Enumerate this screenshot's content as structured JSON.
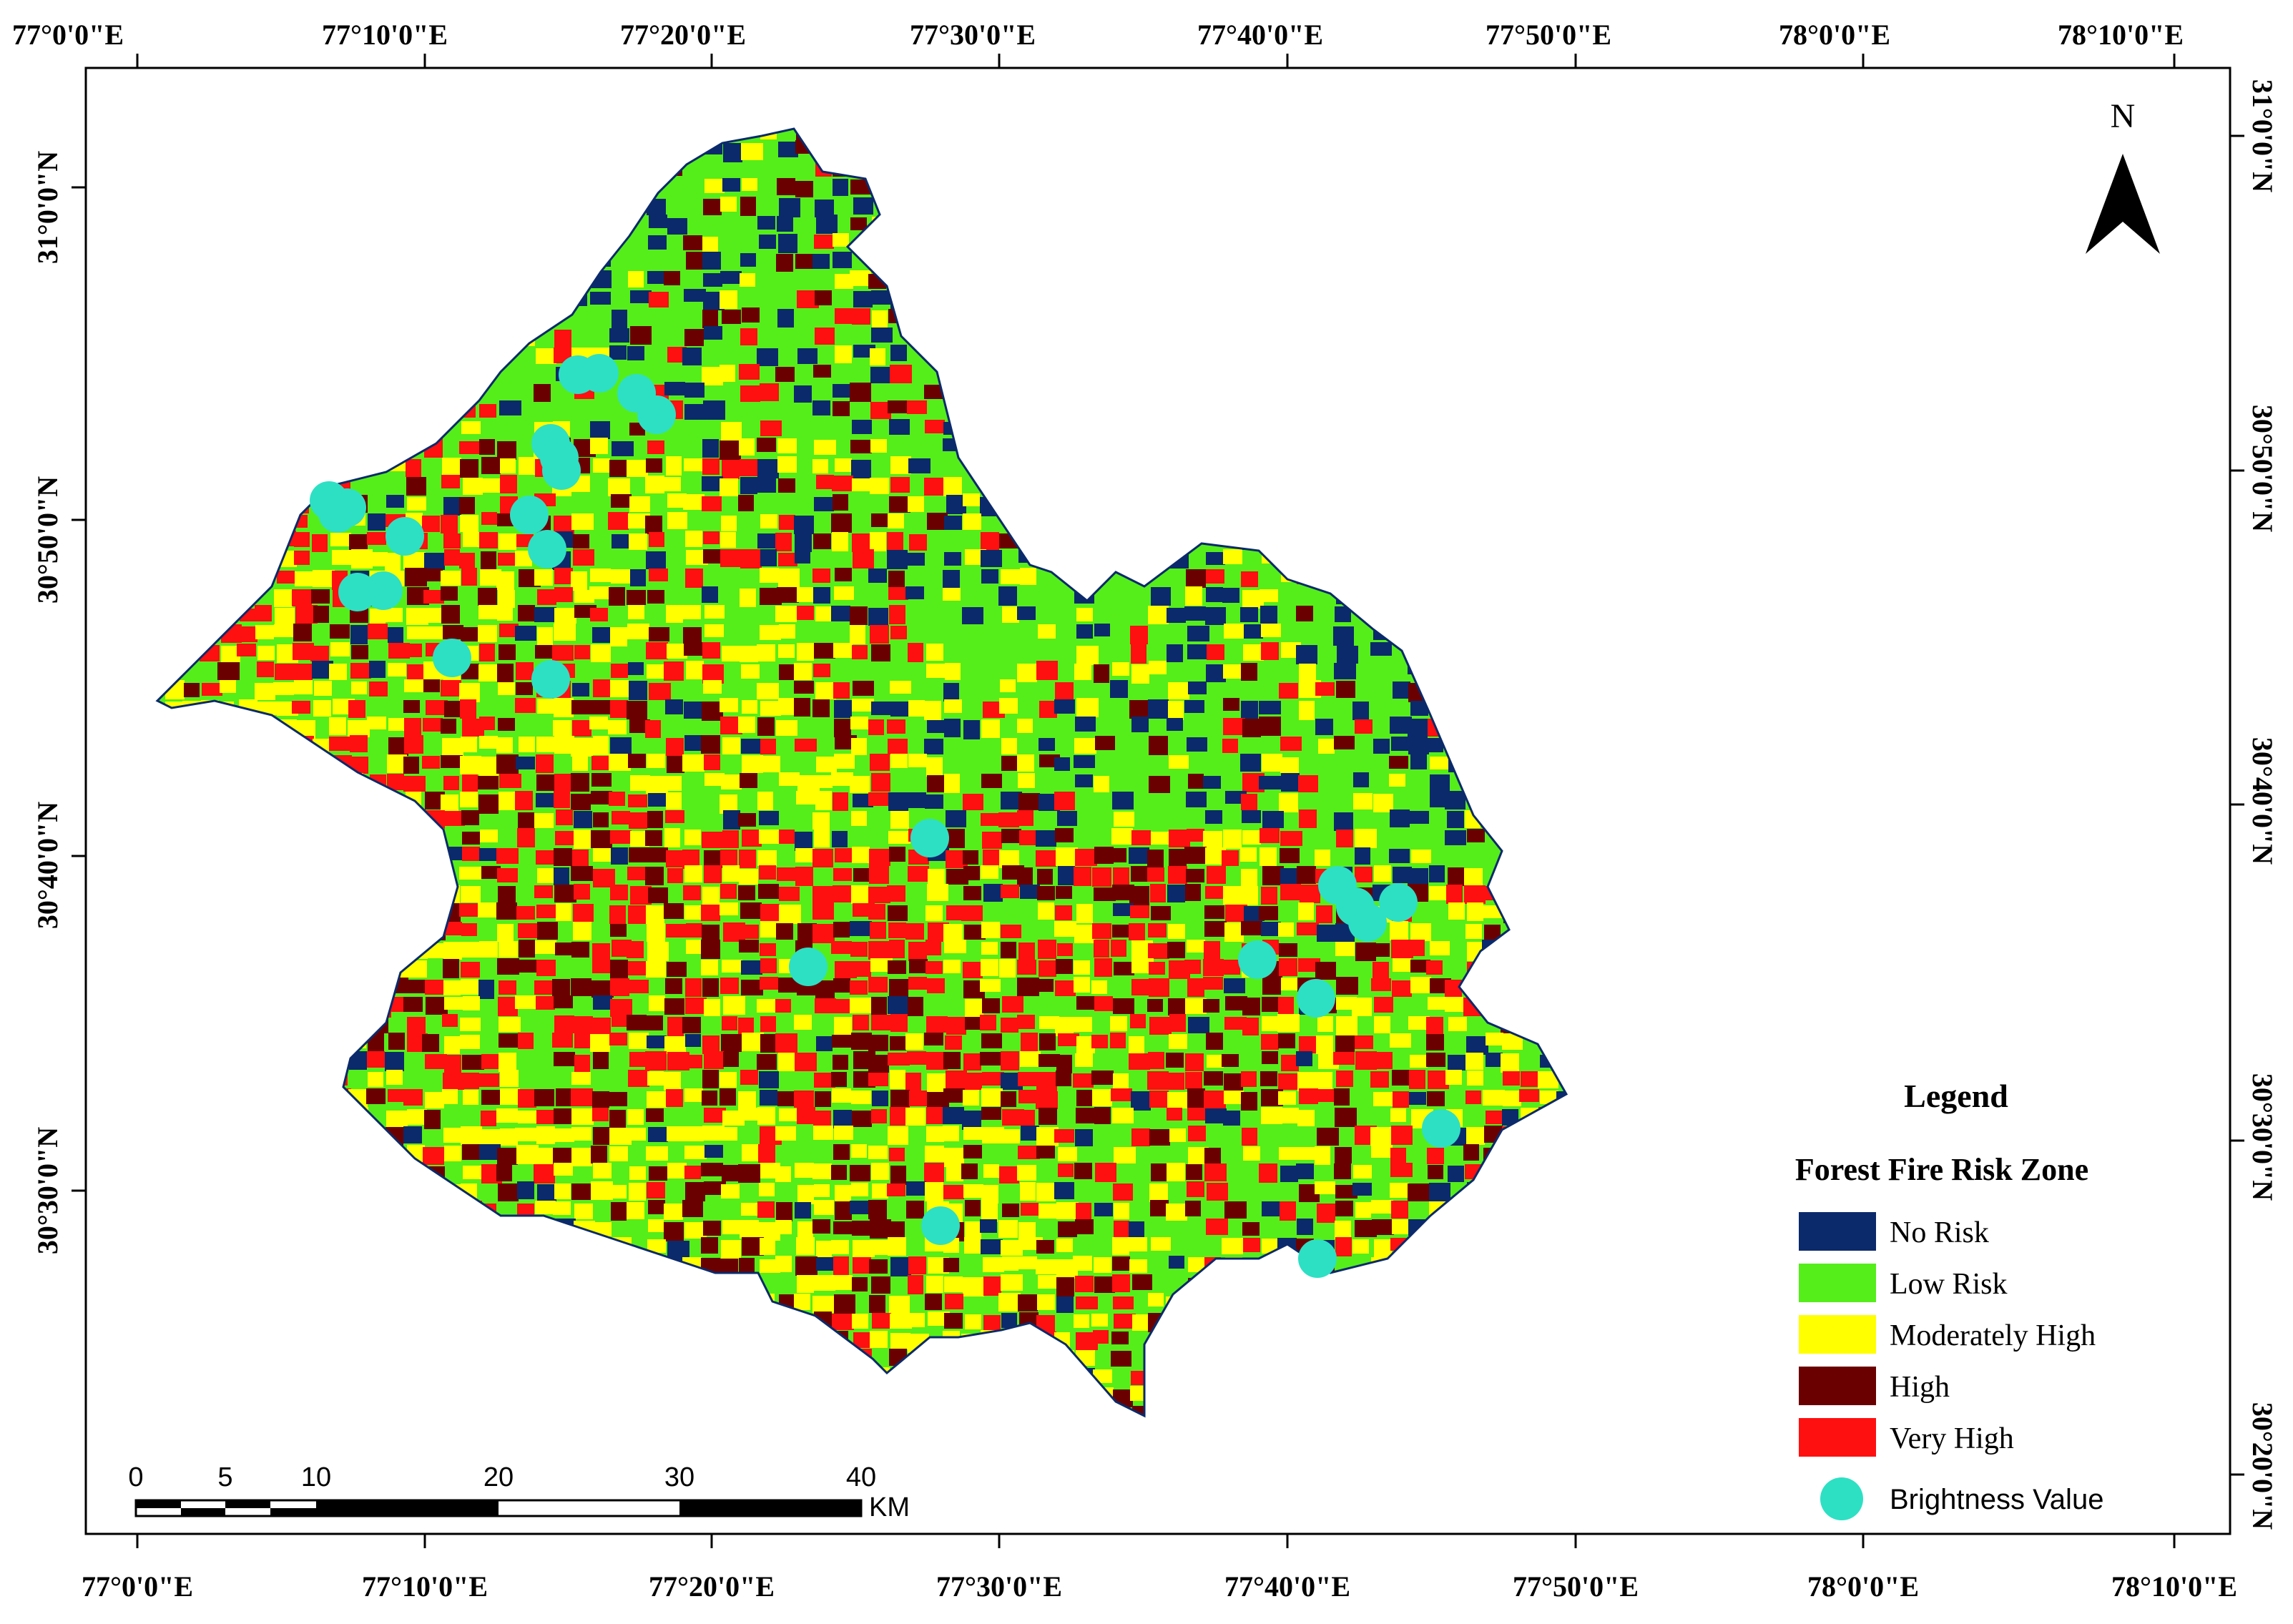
{
  "map": {
    "top_lon_labels": [
      "77°0'0\"E",
      "77°10'0\"E",
      "77°20'0\"E",
      "77°30'0\"E",
      "77°40'0\"E",
      "77°50'0\"E",
      "78°0'0\"E",
      "78°10'0\"E"
    ],
    "bottom_lon_labels": [
      "77°0'0\"E",
      "77°10'0\"E",
      "77°20'0\"E",
      "77°30'0\"E",
      "77°40'0\"E",
      "77°50'0\"E",
      "78°0'0\"E",
      "78°10'0\"E"
    ],
    "left_lat_labels": [
      "31°0'0\"N",
      "30°50'0\"N",
      "30°40'0\"N",
      "30°30'0\"N"
    ],
    "right_lat_labels": [
      "31°0'0\"N",
      "30°50'0\"N",
      "30°40'0\"N",
      "30°30'0\"N",
      "30°20'0\"N"
    ]
  },
  "north_arrow": {
    "label": "N"
  },
  "legend": {
    "title": "Legend",
    "subtitle": "Forest Fire Risk Zone",
    "items": [
      {
        "label": "No Risk",
        "color": "#0b2a6b"
      },
      {
        "label": "Low Risk",
        "color": "#55ee1a"
      },
      {
        "label": "Moderately High",
        "color": "#ffff00"
      },
      {
        "label": "High",
        "color": "#6b0000"
      },
      {
        "label": "Very High",
        "color": "#ff1010"
      }
    ],
    "point_label": "Brightness Value",
    "point_color": "#2de0c4"
  },
  "scale_bar": {
    "labels": [
      "0",
      "5",
      "10",
      "20",
      "30",
      "40"
    ],
    "unit": "KM"
  }
}
